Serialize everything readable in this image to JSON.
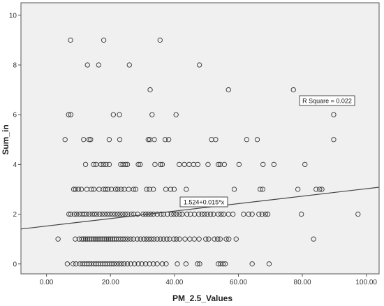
{
  "chart_data": {
    "type": "scatter",
    "xlabel": "PM_2.5_Values",
    "ylabel": "Sum_in",
    "xlim": [
      -8,
      104
    ],
    "ylim": [
      -0.4,
      10.5
    ],
    "x_ticks": [
      0,
      20,
      40,
      60,
      80,
      100
    ],
    "x_tick_labels": [
      "0.00",
      "20.00",
      "40.00",
      "60.00",
      "80.00",
      "100.00"
    ],
    "y_ticks": [
      0,
      2,
      4,
      6,
      8,
      10
    ],
    "y_tick_labels": [
      "0",
      "2",
      "4",
      "6",
      "8",
      "10"
    ],
    "grid": false,
    "plot_background": "#f0f0f0",
    "marker_color": "#333333",
    "line_color": "#444444",
    "fit_line": {
      "intercept": 1.524,
      "slope": 0.015,
      "label": "1.524+0.015*x"
    },
    "r_square_label": "R Square = 0.022",
    "points": [
      {
        "x": 7.5,
        "y": 9
      },
      {
        "x": 17.9,
        "y": 9
      },
      {
        "x": 35.5,
        "y": 9
      },
      {
        "x": 12.8,
        "y": 8
      },
      {
        "x": 16.3,
        "y": 8
      },
      {
        "x": 25.9,
        "y": 8
      },
      {
        "x": 47.8,
        "y": 8
      },
      {
        "x": 32.4,
        "y": 7
      },
      {
        "x": 56.9,
        "y": 7
      },
      {
        "x": 77.2,
        "y": 7
      },
      {
        "x": 6.9,
        "y": 6
      },
      {
        "x": 7.6,
        "y": 6
      },
      {
        "x": 20.9,
        "y": 6
      },
      {
        "x": 22.8,
        "y": 6
      },
      {
        "x": 33.0,
        "y": 6
      },
      {
        "x": 40.5,
        "y": 6
      },
      {
        "x": 89.8,
        "y": 6
      },
      {
        "x": 5.8,
        "y": 5
      },
      {
        "x": 11.6,
        "y": 5
      },
      {
        "x": 13.3,
        "y": 5
      },
      {
        "x": 13.8,
        "y": 5
      },
      {
        "x": 19.6,
        "y": 5
      },
      {
        "x": 22.9,
        "y": 5
      },
      {
        "x": 31.8,
        "y": 5
      },
      {
        "x": 32.3,
        "y": 5
      },
      {
        "x": 33.7,
        "y": 5
      },
      {
        "x": 37.1,
        "y": 5
      },
      {
        "x": 38.2,
        "y": 5
      },
      {
        "x": 51.6,
        "y": 5
      },
      {
        "x": 52.9,
        "y": 5
      },
      {
        "x": 62.6,
        "y": 5
      },
      {
        "x": 65.9,
        "y": 5
      },
      {
        "x": 89.8,
        "y": 5
      },
      {
        "x": 12.2,
        "y": 4
      },
      {
        "x": 14.7,
        "y": 4
      },
      {
        "x": 15.5,
        "y": 4
      },
      {
        "x": 17.0,
        "y": 4
      },
      {
        "x": 17.8,
        "y": 4
      },
      {
        "x": 18.6,
        "y": 4
      },
      {
        "x": 19.6,
        "y": 4
      },
      {
        "x": 23.2,
        "y": 4
      },
      {
        "x": 23.9,
        "y": 4
      },
      {
        "x": 24.7,
        "y": 4
      },
      {
        "x": 25.3,
        "y": 4
      },
      {
        "x": 28.7,
        "y": 4
      },
      {
        "x": 29.3,
        "y": 4
      },
      {
        "x": 33.9,
        "y": 4
      },
      {
        "x": 35.6,
        "y": 4
      },
      {
        "x": 36.2,
        "y": 4
      },
      {
        "x": 41.5,
        "y": 4
      },
      {
        "x": 43.1,
        "y": 4
      },
      {
        "x": 44.6,
        "y": 4
      },
      {
        "x": 46.0,
        "y": 4
      },
      {
        "x": 47.3,
        "y": 4
      },
      {
        "x": 50.5,
        "y": 4
      },
      {
        "x": 53.7,
        "y": 4
      },
      {
        "x": 54.3,
        "y": 4
      },
      {
        "x": 55.6,
        "y": 4
      },
      {
        "x": 60.2,
        "y": 4
      },
      {
        "x": 67.7,
        "y": 4
      },
      {
        "x": 71.1,
        "y": 4
      },
      {
        "x": 80.8,
        "y": 4
      },
      {
        "x": 8.5,
        "y": 3
      },
      {
        "x": 9.1,
        "y": 3
      },
      {
        "x": 10.0,
        "y": 3
      },
      {
        "x": 10.9,
        "y": 3
      },
      {
        "x": 12.6,
        "y": 3
      },
      {
        "x": 14.0,
        "y": 3
      },
      {
        "x": 14.8,
        "y": 3
      },
      {
        "x": 16.4,
        "y": 3
      },
      {
        "x": 17.8,
        "y": 3
      },
      {
        "x": 18.5,
        "y": 3
      },
      {
        "x": 19.2,
        "y": 3
      },
      {
        "x": 20.3,
        "y": 3
      },
      {
        "x": 21.6,
        "y": 3
      },
      {
        "x": 22.3,
        "y": 3
      },
      {
        "x": 23.3,
        "y": 3
      },
      {
        "x": 24.3,
        "y": 3
      },
      {
        "x": 25.7,
        "y": 3
      },
      {
        "x": 27.2,
        "y": 3
      },
      {
        "x": 27.9,
        "y": 3
      },
      {
        "x": 31.3,
        "y": 3
      },
      {
        "x": 32.2,
        "y": 3
      },
      {
        "x": 33.4,
        "y": 3
      },
      {
        "x": 37.3,
        "y": 3
      },
      {
        "x": 38.8,
        "y": 3
      },
      {
        "x": 39.9,
        "y": 3
      },
      {
        "x": 43.7,
        "y": 3
      },
      {
        "x": 58.7,
        "y": 3
      },
      {
        "x": 66.8,
        "y": 3
      },
      {
        "x": 67.6,
        "y": 3
      },
      {
        "x": 78.6,
        "y": 3
      },
      {
        "x": 84.3,
        "y": 3
      },
      {
        "x": 85.4,
        "y": 3
      },
      {
        "x": 86.1,
        "y": 3
      },
      {
        "x": 7.0,
        "y": 2
      },
      {
        "x": 7.6,
        "y": 2
      },
      {
        "x": 8.7,
        "y": 2
      },
      {
        "x": 9.4,
        "y": 2
      },
      {
        "x": 10.3,
        "y": 2
      },
      {
        "x": 11.1,
        "y": 2
      },
      {
        "x": 11.8,
        "y": 2
      },
      {
        "x": 12.5,
        "y": 2
      },
      {
        "x": 13.4,
        "y": 2
      },
      {
        "x": 14.3,
        "y": 2
      },
      {
        "x": 15.0,
        "y": 2
      },
      {
        "x": 15.7,
        "y": 2
      },
      {
        "x": 16.6,
        "y": 2
      },
      {
        "x": 17.4,
        "y": 2
      },
      {
        "x": 18.2,
        "y": 2
      },
      {
        "x": 19.0,
        "y": 2
      },
      {
        "x": 19.8,
        "y": 2
      },
      {
        "x": 20.6,
        "y": 2
      },
      {
        "x": 21.4,
        "y": 2
      },
      {
        "x": 22.2,
        "y": 2
      },
      {
        "x": 23.0,
        "y": 2
      },
      {
        "x": 23.8,
        "y": 2
      },
      {
        "x": 24.6,
        "y": 2
      },
      {
        "x": 25.4,
        "y": 2
      },
      {
        "x": 26.5,
        "y": 2
      },
      {
        "x": 27.3,
        "y": 2
      },
      {
        "x": 28.5,
        "y": 2
      },
      {
        "x": 30.2,
        "y": 2
      },
      {
        "x": 31.0,
        "y": 2
      },
      {
        "x": 31.8,
        "y": 2
      },
      {
        "x": 32.6,
        "y": 2
      },
      {
        "x": 33.4,
        "y": 2
      },
      {
        "x": 34.6,
        "y": 2
      },
      {
        "x": 35.8,
        "y": 2
      },
      {
        "x": 36.6,
        "y": 2
      },
      {
        "x": 37.8,
        "y": 2
      },
      {
        "x": 39.0,
        "y": 2
      },
      {
        "x": 39.8,
        "y": 2
      },
      {
        "x": 40.6,
        "y": 2
      },
      {
        "x": 41.6,
        "y": 2
      },
      {
        "x": 42.4,
        "y": 2
      },
      {
        "x": 43.9,
        "y": 2
      },
      {
        "x": 45.0,
        "y": 2
      },
      {
        "x": 46.3,
        "y": 2
      },
      {
        "x": 47.6,
        "y": 2
      },
      {
        "x": 48.6,
        "y": 2
      },
      {
        "x": 49.4,
        "y": 2
      },
      {
        "x": 50.3,
        "y": 2
      },
      {
        "x": 51.3,
        "y": 2
      },
      {
        "x": 52.2,
        "y": 2
      },
      {
        "x": 53.7,
        "y": 2
      },
      {
        "x": 54.6,
        "y": 2
      },
      {
        "x": 55.4,
        "y": 2
      },
      {
        "x": 56.9,
        "y": 2
      },
      {
        "x": 58.3,
        "y": 2
      },
      {
        "x": 61.6,
        "y": 2
      },
      {
        "x": 63.2,
        "y": 2
      },
      {
        "x": 64.3,
        "y": 2
      },
      {
        "x": 66.4,
        "y": 2
      },
      {
        "x": 67.4,
        "y": 2
      },
      {
        "x": 68.5,
        "y": 2
      },
      {
        "x": 69.2,
        "y": 2
      },
      {
        "x": 79.7,
        "y": 2
      },
      {
        "x": 97.4,
        "y": 2
      },
      {
        "x": 3.6,
        "y": 1
      },
      {
        "x": 9.0,
        "y": 1
      },
      {
        "x": 10.2,
        "y": 1
      },
      {
        "x": 11.0,
        "y": 1
      },
      {
        "x": 11.6,
        "y": 1
      },
      {
        "x": 12.2,
        "y": 1
      },
      {
        "x": 12.8,
        "y": 1
      },
      {
        "x": 13.4,
        "y": 1
      },
      {
        "x": 14.0,
        "y": 1
      },
      {
        "x": 14.6,
        "y": 1
      },
      {
        "x": 15.2,
        "y": 1
      },
      {
        "x": 15.8,
        "y": 1
      },
      {
        "x": 16.4,
        "y": 1
      },
      {
        "x": 17.0,
        "y": 1
      },
      {
        "x": 17.6,
        "y": 1
      },
      {
        "x": 18.2,
        "y": 1
      },
      {
        "x": 18.8,
        "y": 1
      },
      {
        "x": 19.4,
        "y": 1
      },
      {
        "x": 20.0,
        "y": 1
      },
      {
        "x": 20.6,
        "y": 1
      },
      {
        "x": 21.2,
        "y": 1
      },
      {
        "x": 21.8,
        "y": 1
      },
      {
        "x": 22.5,
        "y": 1
      },
      {
        "x": 23.2,
        "y": 1
      },
      {
        "x": 23.9,
        "y": 1
      },
      {
        "x": 24.6,
        "y": 1
      },
      {
        "x": 25.4,
        "y": 1
      },
      {
        "x": 26.3,
        "y": 1
      },
      {
        "x": 27.2,
        "y": 1
      },
      {
        "x": 28.4,
        "y": 1
      },
      {
        "x": 29.4,
        "y": 1
      },
      {
        "x": 30.4,
        "y": 1
      },
      {
        "x": 31.2,
        "y": 1
      },
      {
        "x": 32.0,
        "y": 1
      },
      {
        "x": 32.8,
        "y": 1
      },
      {
        "x": 33.6,
        "y": 1
      },
      {
        "x": 34.6,
        "y": 1
      },
      {
        "x": 35.6,
        "y": 1
      },
      {
        "x": 36.6,
        "y": 1
      },
      {
        "x": 37.6,
        "y": 1
      },
      {
        "x": 38.5,
        "y": 1
      },
      {
        "x": 39.8,
        "y": 1
      },
      {
        "x": 40.6,
        "y": 1
      },
      {
        "x": 41.6,
        "y": 1
      },
      {
        "x": 43.3,
        "y": 1
      },
      {
        "x": 44.8,
        "y": 1
      },
      {
        "x": 46.2,
        "y": 1
      },
      {
        "x": 47.7,
        "y": 1
      },
      {
        "x": 49.8,
        "y": 1
      },
      {
        "x": 50.7,
        "y": 1
      },
      {
        "x": 52.5,
        "y": 1
      },
      {
        "x": 53.5,
        "y": 1
      },
      {
        "x": 54.3,
        "y": 1
      },
      {
        "x": 56.2,
        "y": 1
      },
      {
        "x": 57.0,
        "y": 1
      },
      {
        "x": 59.3,
        "y": 1
      },
      {
        "x": 83.5,
        "y": 1
      },
      {
        "x": 6.5,
        "y": 0
      },
      {
        "x": 8.3,
        "y": 0
      },
      {
        "x": 9.2,
        "y": 0
      },
      {
        "x": 10.4,
        "y": 0
      },
      {
        "x": 11.2,
        "y": 0
      },
      {
        "x": 11.9,
        "y": 0
      },
      {
        "x": 12.6,
        "y": 0
      },
      {
        "x": 13.3,
        "y": 0
      },
      {
        "x": 14.0,
        "y": 0
      },
      {
        "x": 14.8,
        "y": 0
      },
      {
        "x": 15.5,
        "y": 0
      },
      {
        "x": 16.2,
        "y": 0
      },
      {
        "x": 16.9,
        "y": 0
      },
      {
        "x": 17.6,
        "y": 0
      },
      {
        "x": 18.3,
        "y": 0
      },
      {
        "x": 19.0,
        "y": 0
      },
      {
        "x": 19.7,
        "y": 0
      },
      {
        "x": 20.4,
        "y": 0
      },
      {
        "x": 21.1,
        "y": 0
      },
      {
        "x": 21.9,
        "y": 0
      },
      {
        "x": 22.7,
        "y": 0
      },
      {
        "x": 23.5,
        "y": 0
      },
      {
        "x": 24.3,
        "y": 0
      },
      {
        "x": 25.3,
        "y": 0
      },
      {
        "x": 26.3,
        "y": 0
      },
      {
        "x": 27.5,
        "y": 0
      },
      {
        "x": 28.7,
        "y": 0
      },
      {
        "x": 29.8,
        "y": 0
      },
      {
        "x": 31.0,
        "y": 0
      },
      {
        "x": 32.2,
        "y": 0
      },
      {
        "x": 33.4,
        "y": 0
      },
      {
        "x": 34.6,
        "y": 0
      },
      {
        "x": 36.2,
        "y": 0
      },
      {
        "x": 37.4,
        "y": 0
      },
      {
        "x": 40.9,
        "y": 0
      },
      {
        "x": 43.6,
        "y": 0
      },
      {
        "x": 47.2,
        "y": 0
      },
      {
        "x": 47.9,
        "y": 0
      },
      {
        "x": 53.7,
        "y": 0
      },
      {
        "x": 54.4,
        "y": 0
      },
      {
        "x": 55.2,
        "y": 0
      },
      {
        "x": 55.9,
        "y": 0
      },
      {
        "x": 64.3,
        "y": 0
      },
      {
        "x": 69.6,
        "y": 0
      }
    ]
  }
}
